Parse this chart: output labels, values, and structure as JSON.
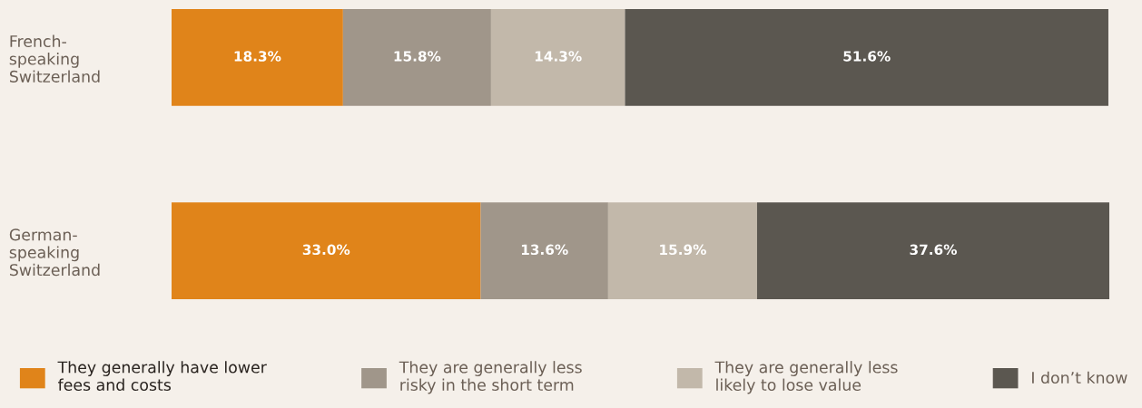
{
  "chart_data": {
    "type": "bar",
    "orientation": "horizontal",
    "stacked": true,
    "legend": "bottom",
    "grid": false,
    "categories": [
      "French-\nspeaking\nSwitzerland",
      "German-\nspeaking\nSwitzerland"
    ],
    "series": [
      {
        "name": "They generally have lower\nfees and costs",
        "color": "#e0841a",
        "values": [
          18.3,
          33.0
        ],
        "value_labels": [
          "18.3%",
          "33.0%"
        ]
      },
      {
        "name": "They are generally less\nrisky in the short term",
        "color": "#a0968a",
        "values": [
          15.8,
          13.6
        ],
        "value_labels": [
          "15.8%",
          "13.6%"
        ]
      },
      {
        "name": "They are generally less\nlikely to lose value",
        "color": "#c2b8aa",
        "values": [
          14.3,
          15.9
        ],
        "value_labels": [
          "14.3%",
          "15.9%"
        ]
      },
      {
        "name": "I don’t know",
        "color": "#5b5750",
        "values": [
          51.6,
          37.6
        ],
        "value_labels": [
          "51.6%",
          "37.6%"
        ]
      }
    ]
  }
}
